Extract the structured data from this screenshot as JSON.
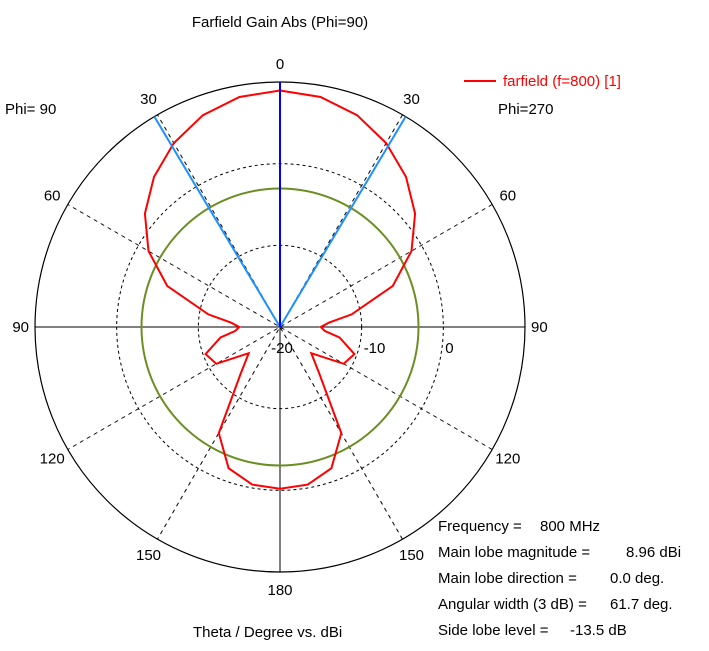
{
  "chart_data": {
    "type": "polar",
    "title": "Farfield Gain Abs (Phi=90)",
    "xlabel": "Theta / Degree vs. dBi",
    "phi_left_label": "Phi= 90",
    "phi_right_label": "Phi=270",
    "radial_ticks": [
      {
        "value": -20,
        "label": "-20"
      },
      {
        "value": -10,
        "label": "-10"
      },
      {
        "value": 0,
        "label": "0"
      }
    ],
    "radial_range": [
      -20,
      10
    ],
    "angle_ticks_right": [
      0,
      30,
      60,
      90,
      120,
      150,
      180
    ],
    "angle_ticks_left": [
      30,
      60,
      90,
      120,
      150
    ],
    "grid": true,
    "series": [
      {
        "name": "farfield (f=800) [1]",
        "color": "#ff0000",
        "theta": [
          0,
          10,
          20,
          30,
          40,
          50,
          60,
          70,
          80,
          85,
          90,
          95,
          100,
          110,
          120,
          130,
          140,
          150,
          160,
          170,
          180
        ],
        "gain_dbi": [
          8.96,
          8.6,
          7.6,
          6.0,
          4.0,
          1.6,
          -1.4,
          -5.3,
          -11.1,
          -14.0,
          -15.0,
          -14.5,
          -12.6,
          -10.3,
          -11.0,
          -15.0,
          -12.5,
          -5.0,
          -1.6,
          -0.4,
          -0.2
        ]
      }
    ],
    "reference_circle": {
      "value": -3.04,
      "color": "#6b8e23"
    },
    "main_lobe_direction_deg": 0.0,
    "beamwidth_lines_deg": [
      -30.85,
      30.85
    ],
    "colors": {
      "main_lobe_line": "#0000ff",
      "beamwidth_line": "#1e90ff",
      "grid": "#000000"
    },
    "legend": {
      "position": "top-right",
      "entries": [
        "farfield (f=800) [1]"
      ]
    },
    "info": [
      {
        "label": "Frequency =",
        "value": "800 MHz"
      },
      {
        "label": "Main lobe magnitude =",
        "value": "8.96 dBi"
      },
      {
        "label": "Main lobe direction =",
        "value": "0.0 deg."
      },
      {
        "label": "Angular width (3 dB) =",
        "value": "61.7 deg."
      },
      {
        "label": "Side lobe level =",
        "value": "-13.5 dB"
      }
    ]
  }
}
